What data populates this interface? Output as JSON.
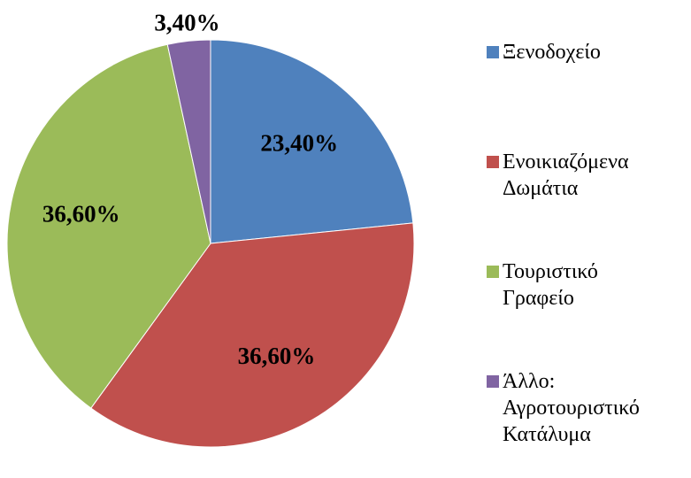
{
  "chart_data": {
    "type": "pie",
    "categories": [
      "Ξενοδοχείο",
      "Ενοικιαζόμενα Δωμάτια",
      "Τουριστικό Γραφείο",
      "Άλλο: Αγροτουριστικό Κατάλυμα"
    ],
    "values": [
      23.4,
      36.6,
      36.6,
      3.4
    ],
    "value_labels": [
      "23,40%",
      "36,60%",
      "36,60%",
      "3,40%"
    ],
    "colors": [
      "#4f81bd",
      "#c0504d",
      "#9bbb59",
      "#8064a2"
    ],
    "legend": "right"
  }
}
